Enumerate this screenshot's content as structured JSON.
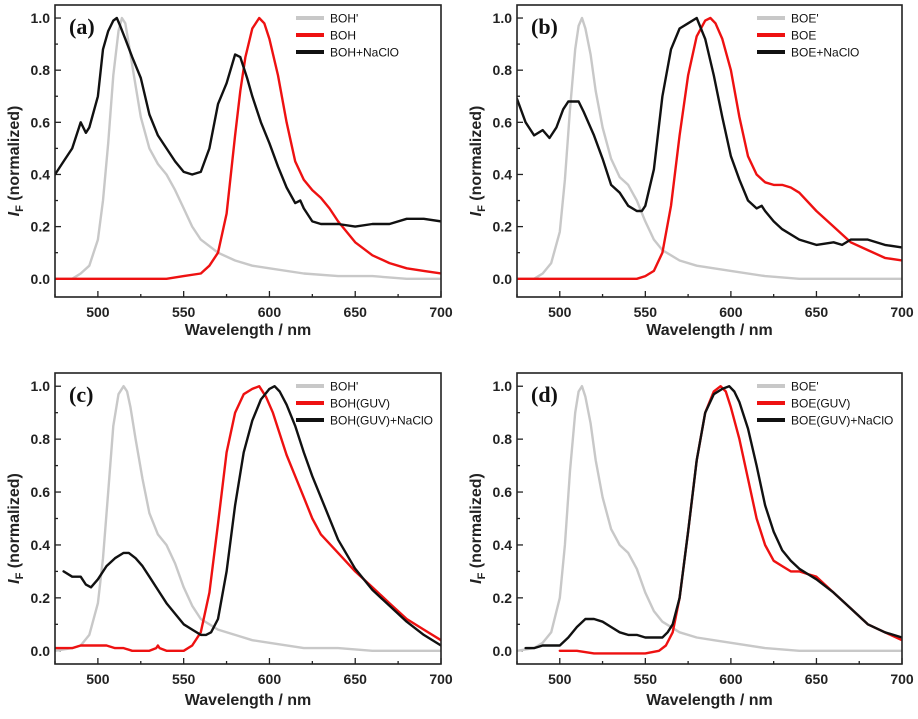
{
  "figure": {
    "description": "Four-panel normalized fluorescence emission spectra"
  },
  "chart_data": [
    {
      "type": "line",
      "panel_label": "(a)",
      "xlabel": "Wavelength / nm",
      "ylabel_main": "I",
      "ylabel_sub": "F",
      "ylabel_rest": " (normalized)",
      "xlim": [
        475,
        700
      ],
      "ylim": [
        -0.07,
        1.05
      ],
      "xticks": [
        500,
        550,
        600,
        650,
        700
      ],
      "yticks": [
        0.0,
        0.2,
        0.4,
        0.6,
        0.8,
        1.0
      ],
      "ytick_labels": [
        "0.0",
        "0.2",
        "0.4",
        "0.6",
        "0.8",
        "1.0"
      ],
      "legend_position": "top-right",
      "series": [
        {
          "name": "BOH'",
          "color": "#c8c8c8",
          "x": [
            475,
            485,
            490,
            495,
            500,
            503,
            506,
            509,
            512,
            514,
            516,
            518,
            521,
            525,
            530,
            535,
            540,
            545,
            550,
            555,
            560,
            570,
            580,
            590,
            600,
            620,
            640,
            660,
            680,
            700
          ],
          "y": [
            0.0,
            0.0,
            0.02,
            0.05,
            0.15,
            0.3,
            0.52,
            0.78,
            0.95,
            1.0,
            0.98,
            0.9,
            0.78,
            0.62,
            0.5,
            0.44,
            0.4,
            0.34,
            0.27,
            0.2,
            0.15,
            0.1,
            0.07,
            0.05,
            0.04,
            0.02,
            0.01,
            0.01,
            0.0,
            0.0
          ]
        },
        {
          "name": "BOH",
          "color": "#ee1111",
          "x": [
            475,
            500,
            540,
            550,
            560,
            565,
            570,
            575,
            580,
            583,
            586,
            590,
            594,
            597,
            600,
            605,
            610,
            615,
            620,
            625,
            630,
            635,
            640,
            650,
            660,
            670,
            680,
            690,
            700
          ],
          "y": [
            0.0,
            0.0,
            0.0,
            0.01,
            0.02,
            0.05,
            0.1,
            0.25,
            0.55,
            0.72,
            0.85,
            0.96,
            1.0,
            0.98,
            0.92,
            0.78,
            0.6,
            0.45,
            0.38,
            0.34,
            0.31,
            0.27,
            0.22,
            0.14,
            0.09,
            0.06,
            0.04,
            0.03,
            0.02
          ]
        },
        {
          "name": "BOH+NaClO",
          "color": "#111111",
          "x": [
            475,
            480,
            485,
            490,
            493,
            495,
            500,
            503,
            506,
            509,
            511,
            513,
            516,
            520,
            525,
            530,
            535,
            540,
            545,
            550,
            555,
            560,
            565,
            570,
            575,
            580,
            583,
            587,
            590,
            595,
            600,
            605,
            610,
            615,
            618,
            620,
            625,
            630,
            640,
            650,
            660,
            670,
            680,
            690,
            700
          ],
          "y": [
            0.4,
            0.45,
            0.5,
            0.6,
            0.56,
            0.58,
            0.7,
            0.88,
            0.95,
            0.99,
            1.0,
            0.97,
            0.92,
            0.85,
            0.77,
            0.63,
            0.55,
            0.5,
            0.45,
            0.41,
            0.4,
            0.41,
            0.5,
            0.67,
            0.75,
            0.86,
            0.85,
            0.77,
            0.7,
            0.6,
            0.52,
            0.43,
            0.35,
            0.29,
            0.3,
            0.27,
            0.22,
            0.21,
            0.21,
            0.2,
            0.21,
            0.21,
            0.23,
            0.23,
            0.22
          ]
        }
      ]
    },
    {
      "type": "line",
      "panel_label": "(b)",
      "xlabel": "Wavelength / nm",
      "ylabel_main": "I",
      "ylabel_sub": "F",
      "ylabel_rest": " (normalized)",
      "xlim": [
        475,
        700
      ],
      "ylim": [
        -0.07,
        1.05
      ],
      "xticks": [
        500,
        550,
        600,
        650,
        700
      ],
      "yticks": [
        0.0,
        0.2,
        0.4,
        0.6,
        0.8,
        1.0
      ],
      "ytick_labels": [
        "0.0",
        "0.2",
        "0.4",
        "0.6",
        "0.8",
        "1.0"
      ],
      "legend_position": "top-right",
      "series": [
        {
          "name": "BOE'",
          "color": "#c8c8c8",
          "x": [
            475,
            485,
            490,
            495,
            500,
            503,
            506,
            509,
            511,
            513,
            515,
            518,
            521,
            525,
            530,
            535,
            540,
            545,
            550,
            555,
            560,
            570,
            580,
            590,
            600,
            620,
            640,
            660,
            680,
            700
          ],
          "y": [
            0.0,
            0.0,
            0.02,
            0.06,
            0.18,
            0.38,
            0.65,
            0.88,
            0.97,
            1.0,
            0.96,
            0.86,
            0.72,
            0.58,
            0.46,
            0.39,
            0.36,
            0.3,
            0.22,
            0.15,
            0.11,
            0.07,
            0.05,
            0.04,
            0.03,
            0.01,
            0.0,
            0.0,
            0.0,
            0.0
          ]
        },
        {
          "name": "BOE",
          "color": "#ee1111",
          "x": [
            475,
            500,
            525,
            545,
            550,
            555,
            560,
            565,
            570,
            575,
            580,
            585,
            588,
            591,
            595,
            600,
            605,
            610,
            615,
            620,
            625,
            630,
            635,
            640,
            650,
            660,
            670,
            680,
            690,
            700
          ],
          "y": [
            0.0,
            0.0,
            0.0,
            0.0,
            0.01,
            0.03,
            0.1,
            0.28,
            0.55,
            0.78,
            0.93,
            0.99,
            1.0,
            0.98,
            0.92,
            0.8,
            0.62,
            0.47,
            0.4,
            0.37,
            0.36,
            0.36,
            0.35,
            0.33,
            0.26,
            0.2,
            0.14,
            0.11,
            0.08,
            0.07
          ]
        },
        {
          "name": "BOE+NaClO",
          "color": "#111111",
          "x": [
            475,
            480,
            485,
            490,
            494,
            498,
            502,
            505,
            508,
            511,
            514,
            520,
            525,
            530,
            535,
            540,
            545,
            548,
            550,
            555,
            560,
            565,
            570,
            575,
            580,
            585,
            590,
            595,
            600,
            605,
            610,
            615,
            618,
            620,
            625,
            630,
            640,
            650,
            660,
            665,
            670,
            675,
            680,
            690,
            700
          ],
          "y": [
            0.69,
            0.6,
            0.55,
            0.57,
            0.54,
            0.58,
            0.65,
            0.68,
            0.68,
            0.68,
            0.64,
            0.55,
            0.46,
            0.36,
            0.33,
            0.28,
            0.26,
            0.26,
            0.28,
            0.42,
            0.7,
            0.88,
            0.96,
            0.98,
            1.0,
            0.92,
            0.78,
            0.62,
            0.47,
            0.38,
            0.3,
            0.27,
            0.28,
            0.26,
            0.22,
            0.19,
            0.15,
            0.13,
            0.14,
            0.13,
            0.15,
            0.15,
            0.15,
            0.13,
            0.12
          ]
        }
      ]
    },
    {
      "type": "line",
      "panel_label": "(c)",
      "xlabel": "Wavelength / nm",
      "ylabel_main": "I",
      "ylabel_sub": "F",
      "ylabel_rest": " (normalized)",
      "xlim": [
        475,
        700
      ],
      "ylim": [
        -0.05,
        1.05
      ],
      "xticks": [
        500,
        550,
        600,
        650,
        700
      ],
      "yticks": [
        0.0,
        0.2,
        0.4,
        0.6,
        0.8,
        1.0
      ],
      "ytick_labels": [
        "0.0",
        "0.2",
        "0.4",
        "0.6",
        "0.8",
        "1.0"
      ],
      "legend_position": "top-right",
      "series": [
        {
          "name": "BOH'",
          "color": "#c8c8c8",
          "x": [
            475,
            485,
            490,
            495,
            500,
            503,
            506,
            509,
            512,
            515,
            517,
            519,
            522,
            526,
            530,
            535,
            540,
            545,
            550,
            555,
            560,
            570,
            580,
            590,
            600,
            620,
            640,
            660,
            680,
            700
          ],
          "y": [
            0.0,
            0.01,
            0.02,
            0.06,
            0.18,
            0.35,
            0.6,
            0.85,
            0.97,
            1.0,
            0.98,
            0.92,
            0.8,
            0.65,
            0.52,
            0.44,
            0.4,
            0.33,
            0.24,
            0.17,
            0.12,
            0.08,
            0.06,
            0.04,
            0.03,
            0.01,
            0.01,
            0.0,
            0.0,
            0.0
          ]
        },
        {
          "name": "BOH(GUV)",
          "color": "#ee1111",
          "x": [
            475,
            485,
            490,
            495,
            500,
            505,
            510,
            515,
            520,
            525,
            530,
            534,
            535,
            536,
            540,
            545,
            550,
            555,
            560,
            565,
            570,
            575,
            580,
            585,
            590,
            594,
            598,
            602,
            606,
            610,
            615,
            620,
            625,
            630,
            640,
            650,
            660,
            670,
            680,
            690,
            700
          ],
          "y": [
            0.01,
            0.01,
            0.02,
            0.02,
            0.02,
            0.02,
            0.01,
            0.01,
            0.0,
            0.0,
            0.0,
            0.01,
            0.02,
            0.01,
            0.0,
            0.0,
            0.0,
            0.02,
            0.07,
            0.22,
            0.48,
            0.75,
            0.9,
            0.97,
            0.99,
            1.0,
            0.96,
            0.9,
            0.82,
            0.74,
            0.66,
            0.58,
            0.5,
            0.44,
            0.37,
            0.3,
            0.24,
            0.18,
            0.12,
            0.08,
            0.04
          ]
        },
        {
          "name": "BOH(GUV)+NaClO",
          "color": "#111111",
          "x": [
            480,
            485,
            490,
            493,
            496,
            500,
            505,
            510,
            515,
            518,
            522,
            526,
            530,
            535,
            540,
            545,
            550,
            555,
            560,
            563,
            566,
            570,
            575,
            580,
            585,
            590,
            595,
            600,
            603,
            606,
            610,
            615,
            620,
            625,
            630,
            640,
            650,
            660,
            670,
            680,
            690,
            700
          ],
          "y": [
            0.3,
            0.28,
            0.28,
            0.25,
            0.24,
            0.27,
            0.32,
            0.35,
            0.37,
            0.37,
            0.35,
            0.32,
            0.28,
            0.23,
            0.18,
            0.14,
            0.1,
            0.08,
            0.06,
            0.06,
            0.07,
            0.12,
            0.3,
            0.55,
            0.75,
            0.87,
            0.95,
            0.99,
            1.0,
            0.98,
            0.93,
            0.85,
            0.75,
            0.66,
            0.58,
            0.42,
            0.31,
            0.23,
            0.17,
            0.11,
            0.06,
            0.02
          ]
        }
      ]
    },
    {
      "type": "line",
      "panel_label": "(d)",
      "xlabel": "Wavelength / nm",
      "ylabel_main": "I",
      "ylabel_sub": "F",
      "ylabel_rest": " (normalized)",
      "xlim": [
        475,
        700
      ],
      "ylim": [
        -0.05,
        1.05
      ],
      "xticks": [
        500,
        550,
        600,
        650,
        700
      ],
      "yticks": [
        0.0,
        0.2,
        0.4,
        0.6,
        0.8,
        1.0
      ],
      "ytick_labels": [
        "0.0",
        "0.2",
        "0.4",
        "0.6",
        "0.8",
        "1.0"
      ],
      "legend_position": "top-right",
      "series": [
        {
          "name": "BOE'",
          "color": "#c8c8c8",
          "x": [
            475,
            485,
            490,
            495,
            500,
            503,
            506,
            509,
            511,
            513,
            515,
            518,
            521,
            525,
            530,
            535,
            540,
            545,
            550,
            555,
            560,
            570,
            580,
            590,
            600,
            620,
            640,
            660,
            680,
            700
          ],
          "y": [
            0.0,
            0.01,
            0.03,
            0.07,
            0.2,
            0.4,
            0.68,
            0.9,
            0.98,
            1.0,
            0.96,
            0.86,
            0.72,
            0.58,
            0.46,
            0.4,
            0.37,
            0.31,
            0.22,
            0.15,
            0.11,
            0.07,
            0.05,
            0.04,
            0.03,
            0.01,
            0.0,
            0.0,
            0.0,
            0.0
          ]
        },
        {
          "name": "BOE(GUV)",
          "color": "#ee1111",
          "x": [
            500,
            510,
            520,
            530,
            540,
            550,
            558,
            562,
            566,
            570,
            575,
            580,
            585,
            590,
            594,
            597,
            600,
            605,
            610,
            615,
            620,
            625,
            630,
            635,
            640,
            645,
            650,
            660,
            670,
            680,
            690,
            700
          ],
          "y": [
            0.0,
            0.0,
            -0.01,
            -0.01,
            -0.01,
            -0.01,
            0.0,
            0.02,
            0.07,
            0.2,
            0.45,
            0.72,
            0.9,
            0.98,
            1.0,
            0.98,
            0.92,
            0.8,
            0.65,
            0.5,
            0.4,
            0.34,
            0.32,
            0.3,
            0.3,
            0.29,
            0.28,
            0.22,
            0.16,
            0.1,
            0.07,
            0.04
          ]
        },
        {
          "name": "BOE(GUV)+NaClO",
          "color": "#111111",
          "x": [
            480,
            485,
            490,
            495,
            500,
            505,
            510,
            515,
            520,
            525,
            530,
            535,
            540,
            545,
            550,
            555,
            560,
            563,
            566,
            570,
            575,
            580,
            585,
            590,
            595,
            599,
            602,
            605,
            610,
            615,
            620,
            625,
            630,
            635,
            640,
            645,
            650,
            660,
            670,
            680,
            690,
            700
          ],
          "y": [
            0.01,
            0.01,
            0.02,
            0.02,
            0.02,
            0.05,
            0.09,
            0.12,
            0.12,
            0.11,
            0.09,
            0.07,
            0.06,
            0.06,
            0.05,
            0.05,
            0.05,
            0.07,
            0.1,
            0.2,
            0.45,
            0.72,
            0.9,
            0.97,
            0.99,
            1.0,
            0.98,
            0.94,
            0.84,
            0.7,
            0.55,
            0.45,
            0.38,
            0.34,
            0.31,
            0.29,
            0.27,
            0.22,
            0.16,
            0.1,
            0.07,
            0.05
          ]
        }
      ]
    }
  ]
}
